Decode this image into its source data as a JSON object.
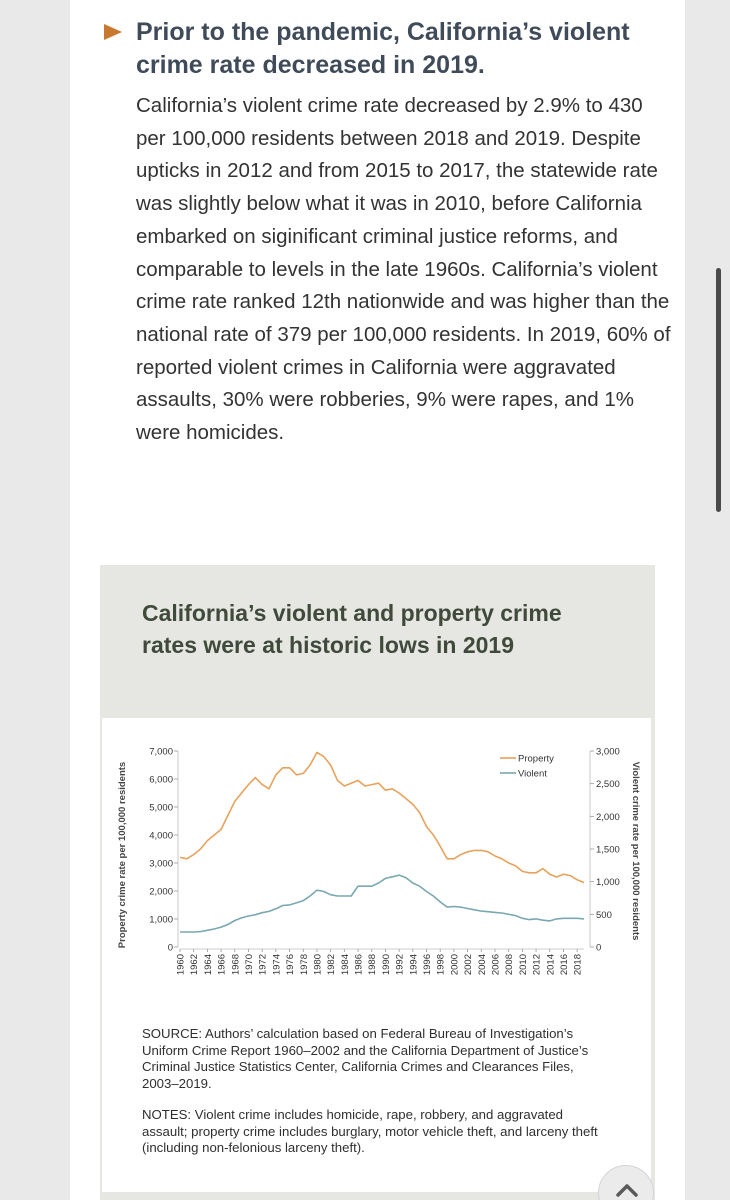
{
  "article": {
    "heading": "Prior to the pandemic, California’s violent crime rate decreased in 2019.",
    "paragraph": "California’s violent crime rate decreased by 2.9% to 430 per 100,000 residents between 2018 and 2019. Despite upticks in 2012 and from 2015 to 2017, the statewide rate was slightly below what it was in 2010, before California embarked on siginificant criminal justice reforms, and comparable to levels in the late 1960s. California’s violent crime rate ranked 12th nationwide and was higher than the national rate of 379 per 100,000 residents. In 2019, 60% of reported violent crimes in California were aggravated assaults, 30% were robberies, 9% were rapes, and 1% were homicides."
  },
  "colors": {
    "accent": "#c9792e",
    "property": "#e8a25c",
    "violent": "#7aa8b0",
    "panel_bg": "#e6e6e3",
    "title_green": "#3f4a3a"
  },
  "figure": {
    "source": "SOURCE: Authors’ calculation based on Federal Bureau of Investigation’s Uniform Crime Report 1960–2002 and the California Department of Justice’s Criminal Justice Statistics Center, California Crimes and Clearances Files, 2003–2019.",
    "notes": "NOTES: Violent crime includes homicide, rape, robbery, and aggravated assault; property crime includes burglary, motor vehicle theft, and larceny theft (including non-felonious larceny theft)."
  },
  "chart_data": {
    "type": "line",
    "title": "California’s violent and property crime rates were at historic lows in 2019",
    "ylabel": "Property crime rate per 100,000 residents",
    "y2label": "Violent crime rate per 100,000 residents",
    "ylim": [
      0,
      7000
    ],
    "y2lim": [
      0,
      3000
    ],
    "yticks": [
      "0",
      "1,000",
      "2,000",
      "3,000",
      "4,000",
      "5,000",
      "6,000",
      "7,000"
    ],
    "y2ticks": [
      "0",
      "500",
      "1,000",
      "1,500",
      "2,000",
      "2,500",
      "3,000"
    ],
    "xticks": [
      "1960",
      "1962",
      "1964",
      "1966",
      "1968",
      "1970",
      "1972",
      "1974",
      "1976",
      "1978",
      "1980",
      "1982",
      "1984",
      "1986",
      "1988",
      "1990",
      "1992",
      "1994",
      "1996",
      "1998",
      "2000",
      "2002",
      "2004",
      "2006",
      "2008",
      "2010",
      "2012",
      "2014",
      "2016",
      "2018"
    ],
    "legend": [
      "Property",
      "Violent"
    ],
    "x": [
      1960,
      1961,
      1962,
      1963,
      1964,
      1965,
      1966,
      1967,
      1968,
      1969,
      1970,
      1971,
      1972,
      1973,
      1974,
      1975,
      1976,
      1977,
      1978,
      1979,
      1980,
      1981,
      1982,
      1983,
      1984,
      1985,
      1986,
      1987,
      1988,
      1989,
      1990,
      1991,
      1992,
      1993,
      1994,
      1995,
      1996,
      1997,
      1998,
      1999,
      2000,
      2001,
      2002,
      2003,
      2004,
      2005,
      2006,
      2007,
      2008,
      2009,
      2010,
      2011,
      2012,
      2013,
      2014,
      2015,
      2016,
      2017,
      2018,
      2019
    ],
    "series": [
      {
        "name": "Property",
        "axis": "left",
        "values": [
          3200,
          3150,
          3300,
          3500,
          3800,
          4000,
          4200,
          4700,
          5200,
          5500,
          5800,
          6050,
          5800,
          5650,
          6150,
          6400,
          6400,
          6150,
          6200,
          6500,
          6950,
          6800,
          6500,
          5950,
          5750,
          5850,
          5950,
          5750,
          5800,
          5850,
          5600,
          5650,
          5500,
          5300,
          5100,
          4800,
          4300,
          4000,
          3600,
          3150,
          3150,
          3300,
          3400,
          3450,
          3450,
          3400,
          3250,
          3150,
          3000,
          2900,
          2700,
          2650,
          2650,
          2800,
          2600,
          2500,
          2600,
          2550,
          2400,
          2300
        ]
      },
      {
        "name": "Violent",
        "axis": "right",
        "values": [
          230,
          230,
          230,
          235,
          255,
          275,
          305,
          345,
          405,
          445,
          475,
          495,
          525,
          545,
          585,
          635,
          645,
          675,
          710,
          780,
          870,
          850,
          800,
          780,
          780,
          780,
          930,
          930,
          930,
          980,
          1050,
          1075,
          1100,
          1060,
          980,
          930,
          850,
          780,
          690,
          610,
          620,
          610,
          590,
          570,
          550,
          540,
          530,
          520,
          500,
          480,
          440,
          420,
          430,
          410,
          400,
          430,
          440,
          440,
          440,
          430
        ]
      }
    ]
  }
}
